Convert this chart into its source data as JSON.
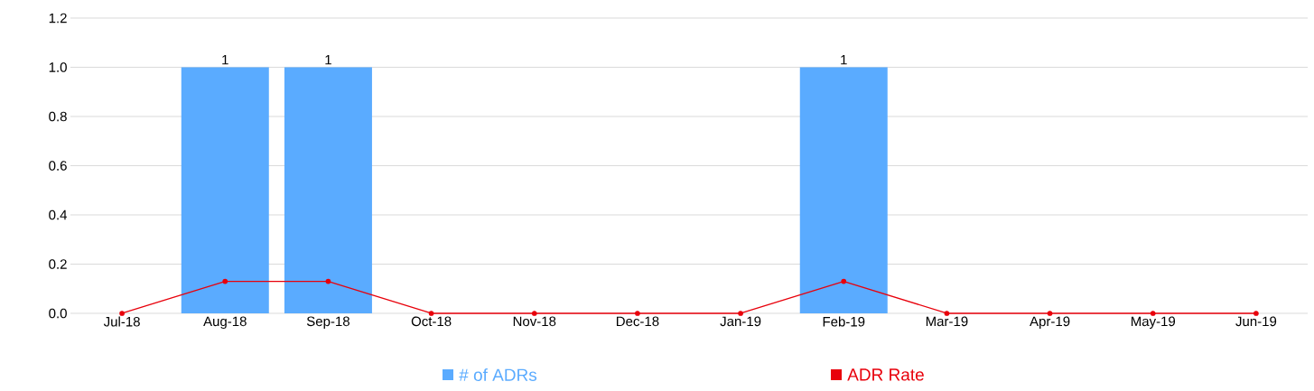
{
  "chart_data": {
    "type": "bar",
    "categories": [
      "Jul-18",
      "Aug-18",
      "Sep-18",
      "Oct-18",
      "Nov-18",
      "Dec-18",
      "Jan-19",
      "Feb-19",
      "Mar-19",
      "Apr-19",
      "May-19",
      "Jun-19"
    ],
    "series": [
      {
        "name": "# of ADRs",
        "color": "#5aabff",
        "values": [
          0,
          1,
          1,
          0,
          0,
          0,
          0,
          1,
          0,
          0,
          0,
          0
        ],
        "value_labels": [
          null,
          "1",
          "1",
          null,
          null,
          null,
          null,
          "1",
          null,
          null,
          null,
          null
        ]
      },
      {
        "name": "ADR Rate",
        "type": "line",
        "color": "#e8000b",
        "marker": "circle",
        "values": [
          0,
          0.13,
          0.13,
          0,
          0,
          0,
          0,
          0.13,
          0,
          0,
          0,
          0
        ]
      }
    ],
    "ylim": [
      0,
      1.2
    ],
    "yticks": [
      {
        "value": 0,
        "label": "0.0"
      },
      0.2,
      0.4,
      0.6,
      0.8,
      {
        "value": 1,
        "label": "1.0"
      },
      1.2
    ],
    "grid": "y",
    "legend": "bottom"
  }
}
